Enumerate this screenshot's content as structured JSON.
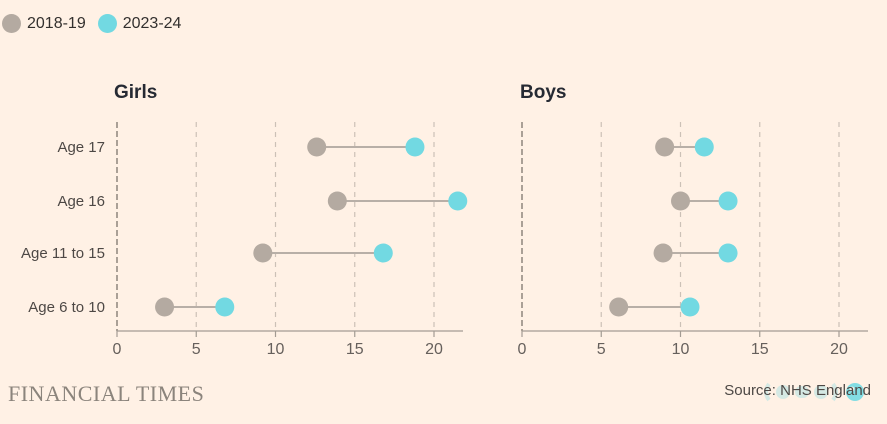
{
  "legend": {
    "items": [
      {
        "label": "2018-19",
        "color": "#B4AAA1"
      },
      {
        "label": "2023-24",
        "color": "#72D9E2"
      }
    ]
  },
  "footer": {
    "brand": "FINANCIAL TIMES",
    "source": "Source: NHS England"
  },
  "colors": {
    "background": "#FFF1E5",
    "series_2018_19": "#B4AAA1",
    "series_2023_24": "#72D9E2",
    "connector": "#B8AFA7",
    "gridline": "#CCC1B7",
    "zero_line": "#857D76",
    "axis_line": "#A39B93",
    "tick_label": "#66605C",
    "category_label": "#4D4845",
    "title_text": "#262A33"
  },
  "chart_data": [
    {
      "type": "scatter",
      "subtype": "dumbbell",
      "title": "Girls",
      "categories": [
        "Age 17",
        "Age 16",
        "Age 11 to 15",
        "Age 6 to 10"
      ],
      "series": [
        {
          "name": "2018-19",
          "color": "#B4AAA1",
          "values": [
            12.6,
            13.9,
            9.2,
            3.0
          ]
        },
        {
          "name": "2023-24",
          "color": "#72D9E2",
          "values": [
            18.8,
            21.5,
            16.8,
            6.8
          ]
        }
      ],
      "xticks": [
        0,
        5,
        10,
        15,
        20
      ],
      "xlim": [
        0,
        21.8
      ],
      "grid": "dashed-vertical",
      "legend_position": "top-left-shared",
      "show_category_labels": true
    },
    {
      "type": "scatter",
      "subtype": "dumbbell",
      "title": "Boys",
      "categories": [
        "Age 17",
        "Age 16",
        "Age 11 to 15",
        "Age 6 to 10"
      ],
      "series": [
        {
          "name": "2018-19",
          "color": "#B4AAA1",
          "values": [
            9.0,
            10.0,
            8.9,
            6.1
          ]
        },
        {
          "name": "2023-24",
          "color": "#72D9E2",
          "values": [
            11.5,
            13.0,
            13.0,
            10.6
          ]
        }
      ],
      "xticks": [
        0,
        5,
        10,
        15,
        20
      ],
      "xlim": [
        0,
        21.8
      ],
      "grid": "dashed-vertical",
      "legend_position": "top-left-shared",
      "show_category_labels": false
    }
  ]
}
